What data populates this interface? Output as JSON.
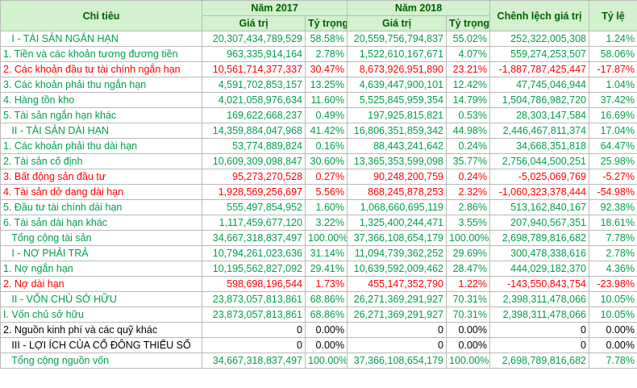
{
  "table": {
    "header": {
      "label": "Chỉ tiêu",
      "year1": "Năm 2017",
      "year2": "Năm 2018",
      "diff": "Chênh lệch giá trị",
      "rate": "Tỷ lệ",
      "sub": [
        "Giá trị",
        "Tỷ trọng",
        "Giá trị",
        "Tỷ trọng"
      ]
    },
    "rows": [
      {
        "color": "#00a04a",
        "cells": [
          "   I - TÀI SẢN NGẮN HẠN",
          "20,307,434,789,529",
          "58.58%",
          "20,559,756,794,837",
          "55.02%",
          "252,322,005,308",
          "1.24%"
        ]
      },
      {
        "color": "#00a04a",
        "cells": [
          "1. Tiền và các khoản tương đương tiền",
          "963,335,914,164",
          "2.78%",
          "1,522,610,167,671",
          "4.07%",
          "559,274,253,507",
          "58.06%"
        ]
      },
      {
        "color": "#ff0000",
        "cells": [
          "2. Các khoản đầu tư tài chính ngắn hạn",
          "10,561,714,377,337",
          "30.47%",
          "8,673,926,951,890",
          "23.21%",
          "-1,887,787,425,447",
          "-17.87%"
        ]
      },
      {
        "color": "#00a04a",
        "cells": [
          "3. Các khoản phải thu ngắn hạn",
          "4,591,702,853,157",
          "13.25%",
          "4,639,447,900,101",
          "12.42%",
          "47,745,046,944",
          "1.04%"
        ]
      },
      {
        "color": "#00a04a",
        "cells": [
          "4. Hàng tồn kho",
          "4,021,058,976,634",
          "11.60%",
          "5,525,845,959,354",
          "14.79%",
          "1,504,786,982,720",
          "37.42%"
        ]
      },
      {
        "color": "#00a04a",
        "cells": [
          "5. Tài sản ngắn hạn khác",
          "169,622,668,237",
          "0.49%",
          "197,925,815,821",
          "0.53%",
          "28,303,147,584",
          "16.69%"
        ]
      },
      {
        "color": "#00a04a",
        "cells": [
          "   II - TÀI SẢN DÀI HẠN",
          "14,359,884,047,968",
          "41.42%",
          "16,806,351,859,342",
          "44.98%",
          "2,446,467,811,374",
          "17.04%"
        ]
      },
      {
        "color": "#00a04a",
        "cells": [
          "1. Các khoản phải thu dài hạn",
          "53,774,889,824",
          "0.16%",
          "88,443,241,642",
          "0.24%",
          "34,668,351,818",
          "64.47%"
        ]
      },
      {
        "color": "#00a04a",
        "cells": [
          "2. Tài sản cố định",
          "10,609,309,098,847",
          "30.60%",
          "13,365,353,599,098",
          "35.77%",
          "2,756,044,500,251",
          "25.98%"
        ]
      },
      {
        "color": "#ff0000",
        "cells": [
          "3. Bất động sản đầu tư",
          "95,273,270,528",
          "0.27%",
          "90,248,200,759",
          "0.24%",
          "-5,025,069,769",
          "-5.27%"
        ]
      },
      {
        "color": "#ff0000",
        "cells": [
          "4. Tài sản dở dang dài hạn",
          "1,928,569,256,697",
          "5.56%",
          "868,245,878,253",
          "2.32%",
          "-1,060,323,378,444",
          "-54.98%"
        ]
      },
      {
        "color": "#00a04a",
        "cells": [
          "5. Đầu tư tài chính dài hạn",
          "555,497,854,952",
          "1.60%",
          "1,068,660,695,119",
          "2.86%",
          "513,162,840,167",
          "92.38%"
        ]
      },
      {
        "color": "#00a04a",
        "cells": [
          "6. Tài sản dài hạn khác",
          "1,117,459,677,120",
          "3.22%",
          "1,325,400,244,471",
          "3.55%",
          "207,940,567,351",
          "18.61%"
        ]
      },
      {
        "color": "#00a04a",
        "cells": [
          "   Tổng cộng tài sản",
          "34,667,318,837,497",
          "100.00%",
          "37,366,108,654,179",
          "100.00%",
          "2,698,789,816,682",
          "7.78%"
        ]
      },
      {
        "color": "#00a04a",
        "cells": [
          "   I - NỢ PHẢI TRẢ",
          "10,794,261,023,636",
          "31.14%",
          "11,094,739,362,252",
          "29.69%",
          "300,478,338,616",
          "2.78%"
        ]
      },
      {
        "color": "#00a04a",
        "cells": [
          "1. Nợ ngắn hạn",
          "10,195,562,827,092",
          "29.41%",
          "10,639,592,009,462",
          "28.47%",
          "444,029,182,370",
          "4.36%"
        ]
      },
      {
        "color": "#ff0000",
        "cells": [
          "2. Nợ dài hạn",
          "598,698,196,544",
          "1.73%",
          "455,147,352,790",
          "1.22%",
          "-143,550,843,754",
          "-23.98%"
        ]
      },
      {
        "color": "#00a04a",
        "cells": [
          "   II - VỐN CHỦ SỞ HỮU",
          "23,873,057,813,861",
          "68.86%",
          "26,271,369,291,927",
          "70.31%",
          "2,398,311,478,066",
          "10.05%"
        ]
      },
      {
        "color": "#00a04a",
        "cells": [
          "I. Vốn chủ sở hữu",
          "23,873,057,813,861",
          "68.86%",
          "26,271,369,291,927",
          "70.31%",
          "2,398,311,478,066",
          "10.05%"
        ]
      },
      {
        "color": "#000000",
        "cells": [
          "2. Nguồn kinh phí và các quỹ khác",
          "0",
          "0.00%",
          "0",
          "0.00%",
          "0",
          "0.00%"
        ]
      },
      {
        "color": "#000000",
        "cells": [
          "   III - LỢI ÍCH CỦA CỔ ĐÔNG THIỂU SỐ",
          "0",
          "0.00%",
          "0",
          "0.00%",
          "0",
          "0.00%"
        ]
      },
      {
        "color": "#00a04a",
        "cells": [
          "   Tổng cộng nguồn vốn",
          "34,667,318,837,497",
          "100.00%",
          "37,366,108,654,179",
          "100.00%",
          "2,698,789,816,682",
          "7.78%"
        ]
      }
    ]
  }
}
